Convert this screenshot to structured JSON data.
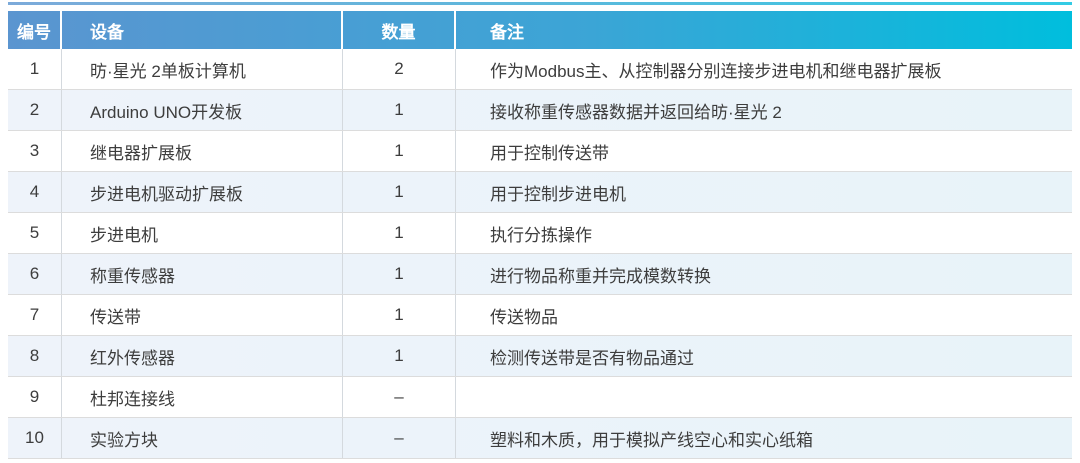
{
  "colors": {
    "header_gradient_start": "#5b95d0",
    "header_gradient_end": "#00bedd",
    "header_text": "#ffffff",
    "alt_row_bg": "#edf3fa",
    "row_border": "#dcdcdc",
    "body_text": "#3d3d3d"
  },
  "table": {
    "headers": {
      "id": "编号",
      "device": "设备",
      "qty": "数量",
      "remark": "备注"
    },
    "rows": [
      {
        "id": "1",
        "device": "昉·星光 2单板计算机",
        "qty": "2",
        "remark": "作为Modbus主、从控制器分别连接步进电机和继电器扩展板"
      },
      {
        "id": "2",
        "device": "Arduino UNO开发板",
        "qty": "1",
        "remark": "接收称重传感器数据并返回给昉·星光 2"
      },
      {
        "id": "3",
        "device": "继电器扩展板",
        "qty": "1",
        "remark": "用于控制传送带"
      },
      {
        "id": "4",
        "device": "步进电机驱动扩展板",
        "qty": "1",
        "remark": "用于控制步进电机"
      },
      {
        "id": "5",
        "device": "步进电机",
        "qty": "1",
        "remark": "执行分拣操作"
      },
      {
        "id": "6",
        "device": "称重传感器",
        "qty": "1",
        "remark": "进行物品称重并完成模数转换"
      },
      {
        "id": "7",
        "device": "传送带",
        "qty": "1",
        "remark": "传送物品"
      },
      {
        "id": "8",
        "device": "红外传感器",
        "qty": "1",
        "remark": "检测传送带是否有物品通过"
      },
      {
        "id": "9",
        "device": "杜邦连接线",
        "qty": "–",
        "remark": ""
      },
      {
        "id": "10",
        "device": "实验方块",
        "qty": "–",
        "remark": "塑料和木质，用于模拟产线空心和实心纸箱"
      }
    ]
  }
}
